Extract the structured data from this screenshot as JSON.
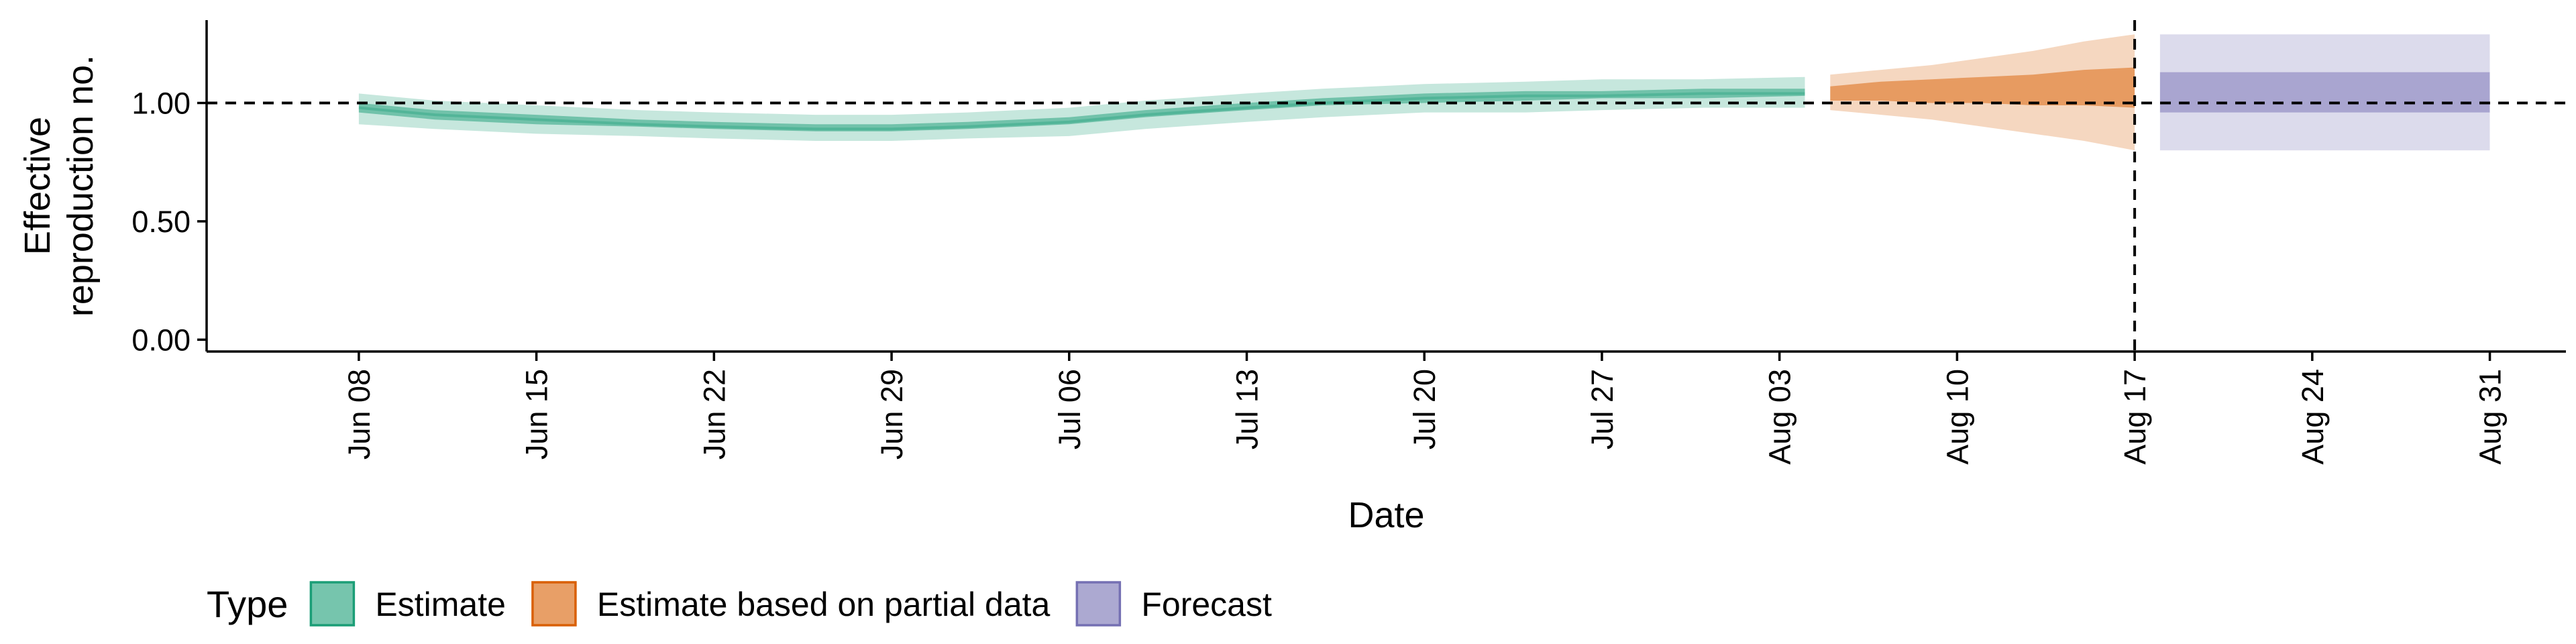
{
  "chart_data": {
    "type": "area",
    "xlabel": "Date",
    "ylabel": [
      "Effective",
      "reproduction no."
    ],
    "ylim": [
      -0.05,
      1.35
    ],
    "xlim": [
      "2020-06-02",
      "2020-09-03"
    ],
    "yticks": [
      0,
      0.5,
      1
    ],
    "ytick_labels": [
      "0.00",
      "0.50",
      "1.00"
    ],
    "xticks": [
      "2020-06-08",
      "2020-06-15",
      "2020-06-22",
      "2020-06-29",
      "2020-07-06",
      "2020-07-13",
      "2020-07-20",
      "2020-07-27",
      "2020-08-03",
      "2020-08-10",
      "2020-08-17",
      "2020-08-24",
      "2020-08-31"
    ],
    "xtick_labels": [
      "Jun 08",
      "Jun 15",
      "Jun 22",
      "Jun 29",
      "Jul 06",
      "Jul 13",
      "Jul 20",
      "Jul 27",
      "Aug 03",
      "Aug 10",
      "Aug 17",
      "Aug 24",
      "Aug 31"
    ],
    "reference_line_y": 1,
    "reference_line_x": "2020-08-17",
    "grid": false,
    "legend": {
      "title": "Type",
      "position": "bottom-left",
      "entries": [
        {
          "label": "Estimate",
          "fill": "#1b9e77",
          "border": "#1b9e77"
        },
        {
          "label": "Estimate based on partial data",
          "fill": "#d95f02",
          "border": "#d95f02"
        },
        {
          "label": "Forecast",
          "fill": "#7570b3",
          "border": "#7570b3"
        }
      ]
    },
    "series": [
      {
        "name": "Estimate",
        "color": "#1b9e77",
        "x": [
          "2020-06-08",
          "2020-06-11",
          "2020-06-15",
          "2020-06-19",
          "2020-06-22",
          "2020-06-26",
          "2020-06-29",
          "2020-07-02",
          "2020-07-06",
          "2020-07-09",
          "2020-07-13",
          "2020-07-16",
          "2020-07-20",
          "2020-07-24",
          "2020-07-27",
          "2020-07-31",
          "2020-08-04"
        ],
        "outer_lower": [
          0.91,
          0.89,
          0.87,
          0.86,
          0.85,
          0.84,
          0.84,
          0.85,
          0.86,
          0.89,
          0.92,
          0.94,
          0.96,
          0.96,
          0.97,
          0.98,
          0.98
        ],
        "outer_upper": [
          1.04,
          1.01,
          0.99,
          0.97,
          0.96,
          0.95,
          0.95,
          0.96,
          0.98,
          1.01,
          1.04,
          1.06,
          1.08,
          1.09,
          1.1,
          1.1,
          1.11
        ],
        "inner_lower": [
          0.96,
          0.93,
          0.91,
          0.9,
          0.89,
          0.88,
          0.88,
          0.89,
          0.91,
          0.94,
          0.97,
          0.99,
          1.0,
          1.01,
          1.02,
          1.02,
          1.03
        ],
        "inner_upper": [
          1.0,
          0.97,
          0.95,
          0.93,
          0.92,
          0.91,
          0.91,
          0.92,
          0.94,
          0.97,
          1.0,
          1.02,
          1.04,
          1.05,
          1.05,
          1.06,
          1.06
        ],
        "median": [
          0.98,
          0.95,
          0.93,
          0.91,
          0.9,
          0.89,
          0.89,
          0.9,
          0.92,
          0.95,
          0.98,
          1.0,
          1.02,
          1.03,
          1.03,
          1.04,
          1.04
        ]
      },
      {
        "name": "Estimate based on partial data",
        "color": "#d95f02",
        "x": [
          "2020-08-05",
          "2020-08-07",
          "2020-08-09",
          "2020-08-11",
          "2020-08-13",
          "2020-08-15",
          "2020-08-17"
        ],
        "outer_lower": [
          0.97,
          0.95,
          0.93,
          0.9,
          0.87,
          0.84,
          0.8
        ],
        "outer_upper": [
          1.12,
          1.14,
          1.16,
          1.19,
          1.22,
          1.26,
          1.29
        ],
        "inner_lower": [
          1.01,
          1.01,
          1.0,
          1.0,
          0.99,
          0.99,
          0.98
        ],
        "inner_upper": [
          1.07,
          1.09,
          1.1,
          1.11,
          1.12,
          1.14,
          1.15
        ]
      },
      {
        "name": "Forecast",
        "color": "#7570b3",
        "x": [
          "2020-08-18",
          "2020-08-31"
        ],
        "outer_lower": [
          0.8,
          0.8
        ],
        "outer_upper": [
          1.29,
          1.29
        ],
        "inner_lower": [
          0.96,
          0.96
        ],
        "inner_upper": [
          1.13,
          1.13
        ]
      }
    ]
  }
}
